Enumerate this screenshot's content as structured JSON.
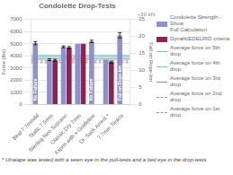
{
  "chart_data": {
    "type": "bar",
    "title": "Condolette Drop-Tests",
    "categories": [
      "Beal 7.7mmdd",
      "Static 7.5mm",
      "Sterling Neo Soprano",
      "Classic Dry 7mm",
      "Aspen with x-Guideline",
      "Dr. Sack Arrest *",
      "7.7mm Taskra"
    ],
    "series": [
      {
        "name": "Condolette Strength - Show\nFull Calculation",
        "color": "#9090cc",
        "values": [
          5050,
          3700,
          4750,
          5000,
          5200,
          3700,
          5700
        ],
        "errors": [
          120,
          80,
          80,
          0,
          100,
          0,
          220
        ]
      },
      {
        "name": "Dynafit/EDELRID criteria",
        "color": "#8b2550",
        "values": [
          0,
          3650,
          4700,
          5000,
          0,
          3500,
          0
        ],
        "errors": [
          0,
          80,
          80,
          0,
          0,
          80,
          0
        ]
      }
    ],
    "hlines": [
      {
        "name": "Average force on 5th drop",
        "y": 4050,
        "color": "#70c0c0",
        "line_style": "solid"
      },
      {
        "name": "Average force on 4th drop",
        "y": 3900,
        "color": "#70c0c0",
        "line_style": "solid"
      },
      {
        "name": "Average force on 3rd drop",
        "y": 3750,
        "color": "#909090",
        "line_style": "solid"
      },
      {
        "name": "Average force on 2nd drop",
        "y": 3600,
        "color": "#909090",
        "line_style": "dashed"
      },
      {
        "name": "Average force on 1st drop",
        "y": 3450,
        "color": "#909090",
        "line_style": "dashed"
      }
    ],
    "ylabel": "Force (lbs)",
    "y2label": "Fall on Rope-km",
    "ylim": [
      0,
      7000
    ],
    "yticks": [
      0,
      1000,
      2000,
      3000,
      4000,
      5000,
      6000,
      7000
    ],
    "y2lim": [
      0,
      25
    ],
    "y2ticks": [
      0,
      5,
      10,
      15,
      20,
      25
    ],
    "annotations": [
      {
        "text": "No Failure",
        "category": "Beal 7.7mmdd"
      },
      {
        "text": "No Failure",
        "category": "Aspen with x-Guideline"
      },
      {
        "text": "Fall on Rope-km",
        "category": "7.7mm Taskra"
      },
      {
        "text": "~30 kN"
      }
    ],
    "footnote": "* Ulratape was tested with a sewn eye in the pull-tests and a tied eye in the drop-tests",
    "grid": "y",
    "legend": "right"
  }
}
